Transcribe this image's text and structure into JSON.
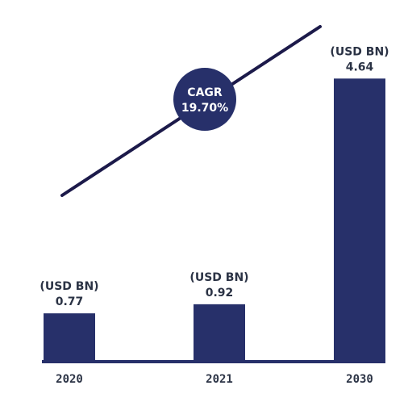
{
  "chart_data": {
    "type": "bar",
    "categories": [
      "2020",
      "2021",
      "2030"
    ],
    "values": [
      0.77,
      0.92,
      4.64
    ],
    "value_labels": [
      "0.77",
      "0.92",
      "4.64"
    ],
    "unit": "(USD BN)",
    "title": "",
    "xlabel": "",
    "ylabel": "",
    "ylim": [
      0,
      5.03
    ],
    "grid": false,
    "annotation": {
      "line1": "CAGR",
      "line2": "19.70%"
    },
    "colors": {
      "bar": "#27306a",
      "trend_line": "#1c1a4a",
      "badge": "#27306a",
      "text": "#2b3345"
    }
  }
}
